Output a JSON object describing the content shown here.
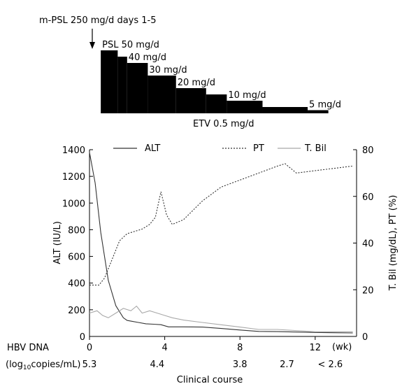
{
  "treatment": {
    "mpsl_label": "m-PSL 250 mg/d days 1-5",
    "etv_label": "ETV 0.5 mg/d",
    "steps": [
      {
        "label": "PSL 50 mg/d",
        "start_wk": 0.6,
        "end_wk": 1.5,
        "level": 50
      },
      {
        "label": "",
        "start_wk": 1.5,
        "end_wk": 2.0,
        "level": 45
      },
      {
        "label": "40 mg/d",
        "start_wk": 2.0,
        "end_wk": 3.1,
        "level": 40
      },
      {
        "label": "30 mg/d",
        "start_wk": 3.1,
        "end_wk": 4.6,
        "level": 30
      },
      {
        "label": "20 mg/d",
        "start_wk": 4.6,
        "end_wk": 6.2,
        "level": 20
      },
      {
        "label": "",
        "start_wk": 6.2,
        "end_wk": 7.3,
        "level": 15
      },
      {
        "label": "10 mg/d",
        "start_wk": 7.3,
        "end_wk": 9.2,
        "level": 10
      },
      {
        "label": "",
        "start_wk": 9.2,
        "end_wk": 11.6,
        "level": 5
      },
      {
        "label": "5 mg/d",
        "start_wk": 11.6,
        "end_wk": 12.7,
        "level": 2.5
      }
    ]
  },
  "legend": [
    {
      "name": "ALT",
      "style": "solid",
      "color": "#333333"
    },
    {
      "name": "PT",
      "style": "dotted",
      "color": "#333333"
    },
    {
      "name": "T. Bil",
      "style": "solid",
      "color": "#a8a8a8"
    }
  ],
  "hbv": {
    "label_line1": "HBV DNA",
    "label_line2_prefix": "(log",
    "label_line2_sub": "10",
    "label_line2_suffix": "copies/mL)",
    "values": [
      {
        "wk": 0,
        "text": "5.3"
      },
      {
        "wk": 3.6,
        "text": "4.4"
      },
      {
        "wk": 8,
        "text": "3.8"
      },
      {
        "wk": 10.5,
        "text": "2.7"
      },
      {
        "wk": 12.8,
        "text": "< 2.6"
      }
    ]
  },
  "chart_data": {
    "type": "line",
    "xlabel": "Clinical course",
    "x_unit_label": "(wk)",
    "xlim": [
      0,
      14.2
    ],
    "xticks": [
      0,
      4,
      8,
      12
    ],
    "ylabel_left": "ALT (IU/L)",
    "ylim_left": [
      0,
      1400
    ],
    "yticks_left": [
      0,
      200,
      400,
      600,
      800,
      1000,
      1200,
      1400
    ],
    "ylabel_right": "T. Bil (mg/dL), PT (%)",
    "ylim_right": [
      0,
      80
    ],
    "yticks_right": [
      0,
      20,
      40,
      60,
      80
    ],
    "grid": false,
    "legend_position": "top",
    "series": [
      {
        "name": "ALT",
        "axis": "left",
        "style": "solid",
        "x": [
          0,
          0.3,
          0.6,
          1.0,
          1.4,
          1.8,
          2.0,
          2.2,
          2.6,
          3.0,
          3.4,
          3.8,
          4.2,
          5.0,
          6.0,
          7.0,
          8.0,
          9.0,
          10.0,
          11.0,
          12.0,
          13.0,
          14.0
        ],
        "y": [
          1380,
          1150,
          780,
          420,
          230,
          140,
          120,
          115,
          105,
          95,
          92,
          88,
          72,
          72,
          70,
          60,
          48,
          38,
          36,
          33,
          30,
          28,
          26
        ]
      },
      {
        "name": "PT",
        "axis": "right",
        "style": "dotted",
        "x": [
          0,
          0.5,
          0.8,
          1.2,
          1.6,
          2.0,
          2.4,
          2.8,
          3.2,
          3.5,
          3.8,
          4.1,
          4.4,
          5.0,
          6.0,
          7.0,
          8.0,
          9.0,
          10.0,
          10.4,
          11.0,
          12.0,
          14.0
        ],
        "y": [
          22,
          22,
          25,
          33,
          41,
          44,
          45,
          46,
          48,
          51,
          62,
          52,
          48,
          50,
          58,
          64,
          67,
          70,
          73,
          74,
          70,
          71,
          73
        ]
      },
      {
        "name": "T. Bil",
        "axis": "right",
        "style": "solid",
        "x": [
          0,
          0.4,
          0.7,
          1.0,
          1.4,
          1.8,
          2.2,
          2.5,
          2.8,
          3.2,
          3.6,
          4.0,
          4.4,
          5.0,
          6.0,
          7.0,
          8.0,
          9.0,
          10.0,
          11.0,
          12.0,
          13.0,
          14.0
        ],
        "y": [
          10,
          11,
          9,
          8,
          10,
          12,
          11,
          13,
          10,
          11,
          10,
          9,
          8,
          7,
          6,
          5,
          4,
          3,
          3,
          2.5,
          2,
          2,
          2
        ]
      }
    ]
  }
}
